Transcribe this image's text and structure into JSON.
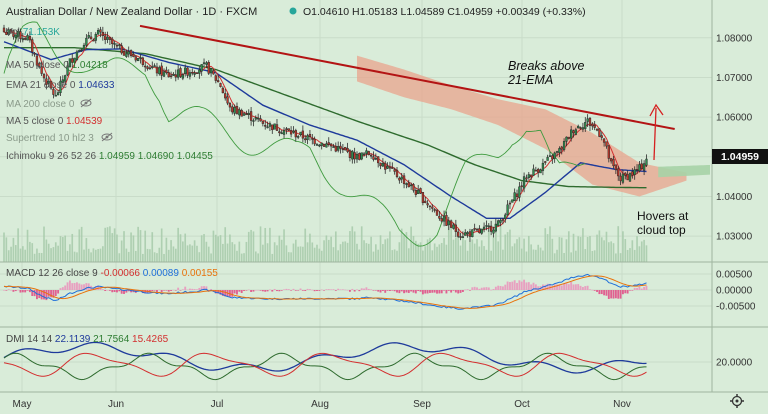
{
  "header": {
    "symbol": "Australian Dollar / New Zealand Dollar · 1D · FXCM",
    "ohlc": "O1.04610  H1.05183  L1.04589  C1.04959  +0.00349 (+0.33%)"
  },
  "indicators": [
    {
      "label": "Vol",
      "value": "71.153K",
      "color": "#26a69a"
    },
    {
      "label": "MA 50 close 0",
      "value": "1.04218",
      "color": "#2e7d32"
    },
    {
      "label": "EMA 21 close 0",
      "value": "1.04633",
      "color": "#1e3a9b"
    },
    {
      "label": "MA 200 close 0",
      "value": "",
      "color": "#8a9a8a"
    },
    {
      "label": "MA 5 close 0",
      "value": "1.04539",
      "color": "#d32f2f"
    },
    {
      "label": "Supertrend 10 hl2 3",
      "value": "",
      "color": "#8a9a8a"
    },
    {
      "label": "Ichimoku 9 26 52 26",
      "value": "1.04959  1.04690  1.04455",
      "color": "#555555"
    }
  ],
  "annotations": {
    "breaks_a": "Breaks above",
    "breaks_b": "21-EMA",
    "hovers_a": "Hovers at",
    "hovers_b": "cloud top"
  },
  "macd": {
    "label": "MACD 12 26 close 9",
    "v1": "-0.00066",
    "v2": "0.00089",
    "v3": "0.00155"
  },
  "dmi": {
    "label": "DMI 14 14",
    "v1": "22.1139",
    "v2": "21.7564",
    "v3": "15.4265"
  },
  "price_axis": {
    "last_price": "1.04959"
  },
  "chart_data": {
    "type": "candlestick",
    "title": "Australian Dollar / New Zealand Dollar, 1D, FXCM",
    "x_ticks": [
      "May",
      "Jun",
      "Jul",
      "Aug",
      "Sep",
      "Oct",
      "Nov"
    ],
    "y_ticks": [
      "1.08000",
      "1.07000",
      "1.06000",
      "1.05000",
      "1.04000",
      "1.03000"
    ],
    "ylim": [
      1.0255,
      1.0865
    ],
    "macd_ticks": [
      "0.00500",
      "0.00000",
      "-0.00500"
    ],
    "dmi_ticks": [
      "20.0000"
    ],
    "close_waypoints": [
      [
        0,
        1.0815
      ],
      [
        10,
        1.08
      ],
      [
        16,
        1.071
      ],
      [
        22,
        1.065
      ],
      [
        28,
        1.074
      ],
      [
        34,
        1.079
      ],
      [
        40,
        1.081
      ],
      [
        48,
        1.0775
      ],
      [
        58,
        1.0745
      ],
      [
        64,
        1.072
      ],
      [
        70,
        1.0705
      ],
      [
        78,
        1.0715
      ],
      [
        86,
        1.0728
      ],
      [
        92,
        1.068
      ],
      [
        96,
        1.062
      ],
      [
        102,
        1.061
      ],
      [
        110,
        1.0585
      ],
      [
        120,
        1.0565
      ],
      [
        130,
        1.0545
      ],
      [
        140,
        1.0525
      ],
      [
        150,
        1.05
      ],
      [
        156,
        1.051
      ],
      [
        162,
        1.0475
      ],
      [
        170,
        1.044
      ],
      [
        178,
        1.0395
      ],
      [
        186,
        1.0345
      ],
      [
        194,
        1.0305
      ],
      [
        202,
        1.031
      ],
      [
        210,
        1.033
      ],
      [
        216,
        1.039
      ],
      [
        222,
        1.045
      ],
      [
        228,
        1.0475
      ],
      [
        236,
        1.0515
      ],
      [
        242,
        1.057
      ],
      [
        248,
        1.059
      ],
      [
        254,
        1.0555
      ],
      [
        258,
        1.048
      ],
      [
        262,
        1.0445
      ],
      [
        266,
        1.0455
      ],
      [
        270,
        1.047
      ],
      [
        273,
        1.0496
      ]
    ],
    "ma50_waypoints": [
      [
        0,
        1.0775
      ],
      [
        30,
        1.0775
      ],
      [
        60,
        1.076
      ],
      [
        90,
        1.072
      ],
      [
        120,
        1.0655
      ],
      [
        150,
        1.059
      ],
      [
        180,
        1.053
      ],
      [
        200,
        1.048
      ],
      [
        220,
        1.044
      ],
      [
        240,
        1.0425
      ],
      [
        260,
        1.0423
      ],
      [
        273,
        1.0422
      ]
    ],
    "ema21_waypoints": [
      [
        0,
        1.079
      ],
      [
        20,
        1.0745
      ],
      [
        35,
        1.077
      ],
      [
        50,
        1.0772
      ],
      [
        70,
        1.0738
      ],
      [
        90,
        1.0712
      ],
      [
        110,
        1.063
      ],
      [
        130,
        1.058
      ],
      [
        150,
        1.0542
      ],
      [
        170,
        1.048
      ],
      [
        190,
        1.04
      ],
      [
        205,
        1.0345
      ],
      [
        215,
        1.0345
      ],
      [
        230,
        1.041
      ],
      [
        245,
        1.0485
      ],
      [
        260,
        1.0468
      ],
      [
        273,
        1.0463
      ]
    ],
    "ichimoku_cloud": {
      "start_index": 150,
      "upper": [
        [
          150,
          1.0755
        ],
        [
          170,
          1.072
        ],
        [
          190,
          1.068
        ],
        [
          210,
          1.0645
        ],
        [
          230,
          1.062
        ],
        [
          250,
          1.056
        ],
        [
          270,
          1.0485
        ],
        [
          290,
          1.046
        ]
      ],
      "lower": [
        [
          150,
          1.069
        ],
        [
          170,
          1.065
        ],
        [
          190,
          1.062
        ],
        [
          210,
          1.058
        ],
        [
          230,
          1.052
        ],
        [
          250,
          1.043
        ],
        [
          270,
          1.04
        ],
        [
          290,
          1.044
        ]
      ]
    },
    "trendline": [
      [
        0,
        1.083
      ],
      [
        285,
        1.057
      ]
    ],
    "volume_range": [
      0,
      71.153
    ]
  }
}
